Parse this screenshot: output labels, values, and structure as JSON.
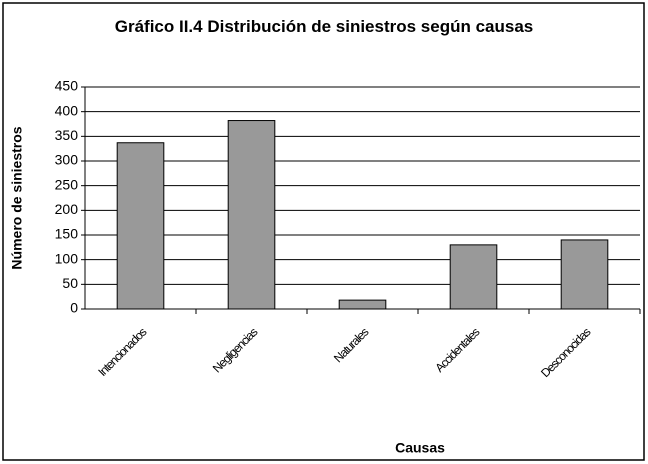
{
  "chart_data": {
    "type": "bar",
    "title": "Gráfico II.4 Distribución de siniestros según causas",
    "x_label": "Causas",
    "y_label": "Número de siniestros",
    "categories": [
      "Intencionados",
      "Negligencias",
      "Naturales",
      "Accidentales",
      "Desconocidas"
    ],
    "values": [
      337,
      382,
      18,
      130,
      140
    ],
    "color": "#999999",
    "ylim": [
      0,
      450
    ],
    "yticks": [
      0,
      50,
      100,
      150,
      200,
      250,
      300,
      350,
      400,
      450
    ],
    "grid": true
  }
}
